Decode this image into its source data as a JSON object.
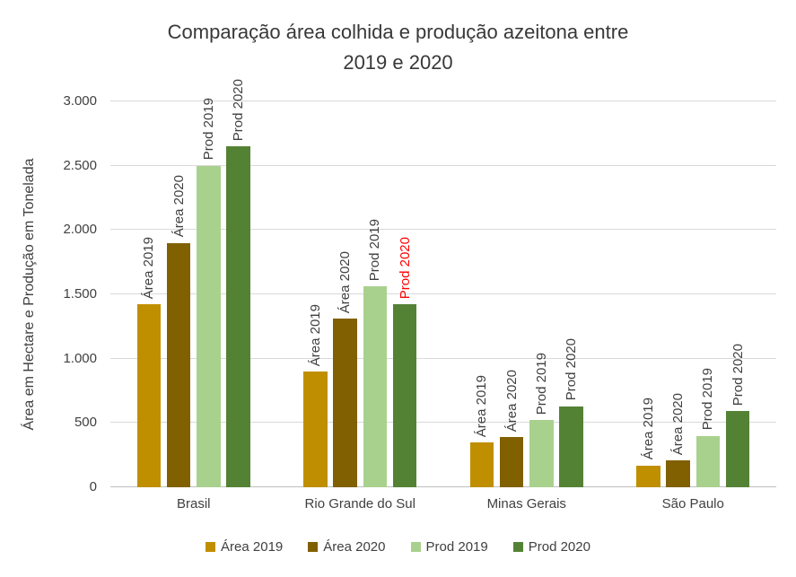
{
  "chart_data": {
    "type": "bar",
    "title_lines": [
      "Comparação área colhida e produção azeitona entre",
      "2019 e 2020"
    ],
    "ylabel": "Área em Hectare e Produção em Tonelada",
    "categories": [
      "Brasil",
      "Rio Grande do Sul",
      "Minas Gerais",
      "São Paulo"
    ],
    "series": [
      {
        "name": "Área 2019",
        "color": "#BF8F00",
        "values": [
          1420,
          900,
          350,
          170
        ]
      },
      {
        "name": "Área 2020",
        "color": "#806000",
        "values": [
          1900,
          1310,
          390,
          210
        ]
      },
      {
        "name": "Prod 2019",
        "color": "#A9D18E",
        "values": [
          2500,
          1560,
          520,
          400
        ]
      },
      {
        "name": "Prod 2020",
        "color": "#548235",
        "values": [
          2650,
          1420,
          630,
          590
        ]
      }
    ],
    "bar_labels": "series-name-above-each-bar",
    "label_highlight": {
      "category_index": 1,
      "series_index": 3,
      "color": "#FF0000"
    },
    "default_label_color": "#404040",
    "ylim": [
      0,
      3000
    ],
    "ytick_step": 500,
    "ytick_labels": [
      "0",
      "500",
      "1.000",
      "1.500",
      "2.000",
      "2.500",
      "3.000"
    ],
    "grid": true,
    "legend_position": "bottom"
  }
}
